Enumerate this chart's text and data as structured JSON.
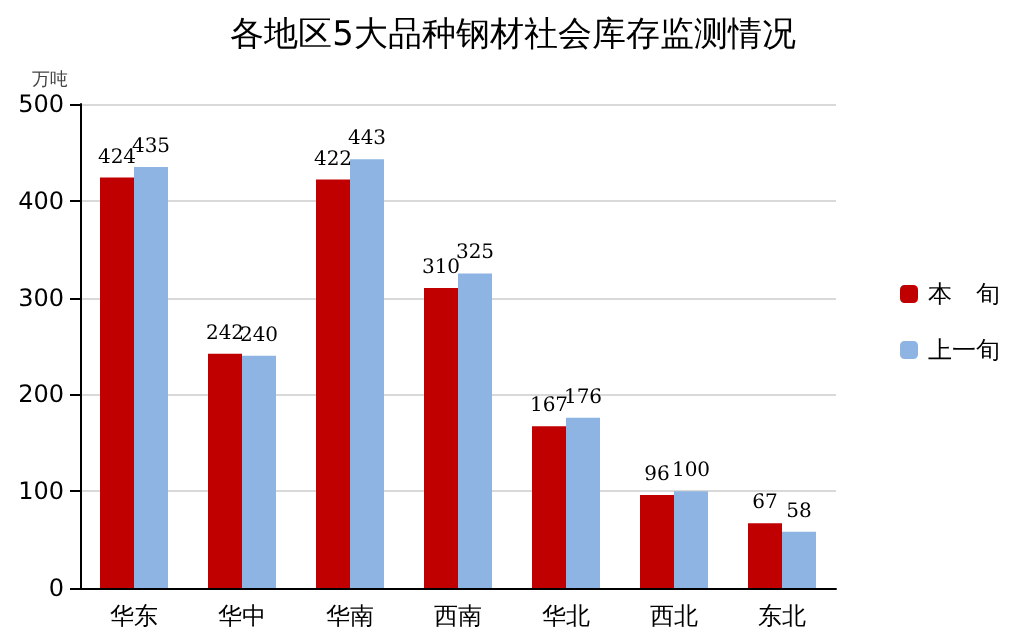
{
  "chart_data": {
    "type": "bar",
    "title": "各地区5大品种钢材社会库存监测情况",
    "ylabel": "万吨",
    "categories": [
      "华东",
      "华中",
      "华南",
      "西南",
      "华北",
      "西北",
      "东北"
    ],
    "series": [
      {
        "name": "本　旬",
        "color": "#c00000",
        "values": [
          424,
          242,
          422,
          310,
          167,
          96,
          67
        ]
      },
      {
        "name": "上一旬",
        "color": "#8db4e2",
        "values": [
          435,
          240,
          443,
          325,
          176,
          100,
          58
        ]
      }
    ],
    "ylim": [
      0,
      500
    ],
    "yticks": [
      0,
      100,
      200,
      300,
      400,
      500
    ],
    "grid": "y",
    "legend": "right",
    "data_labels": true
  }
}
